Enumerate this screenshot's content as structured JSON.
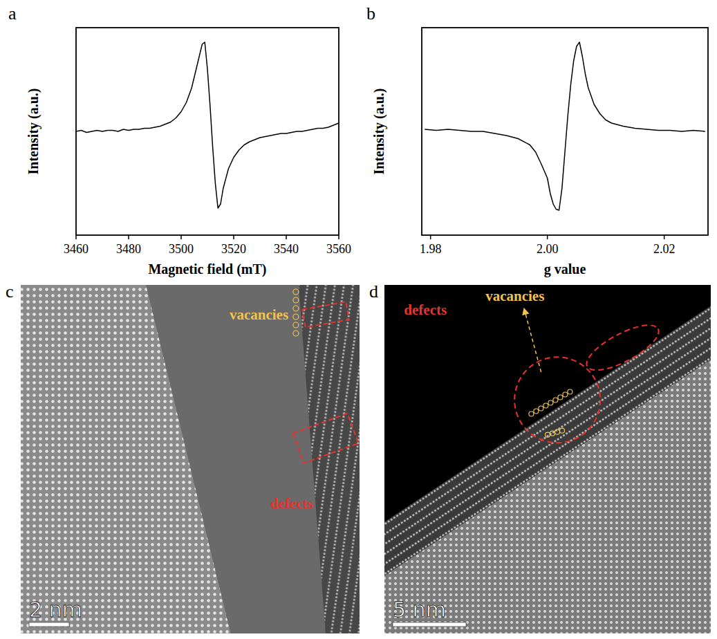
{
  "chart_data": [
    {
      "type": "line",
      "label": "a",
      "x_label": "Magnetic field (mT)",
      "y_label": "Intensity (a.u.)",
      "x": [
        3460,
        3462,
        3464,
        3466,
        3468,
        3470,
        3472,
        3474,
        3476,
        3478,
        3480,
        3482,
        3484,
        3486,
        3488,
        3490,
        3492,
        3494,
        3496,
        3498,
        3500,
        3502,
        3504,
        3506,
        3508,
        3509,
        3510,
        3511,
        3512,
        3513,
        3514,
        3515,
        3516,
        3518,
        3520,
        3522,
        3524,
        3526,
        3528,
        3530,
        3532,
        3534,
        3536,
        3538,
        3540,
        3542,
        3544,
        3546,
        3548,
        3550,
        3552,
        3554,
        3556,
        3558,
        3560
      ],
      "values": [
        0.0,
        0.01,
        -0.01,
        0.0,
        0.01,
        0.0,
        0.01,
        0.01,
        0.0,
        0.02,
        0.01,
        0.02,
        0.02,
        0.03,
        0.03,
        0.04,
        0.05,
        0.07,
        0.09,
        0.13,
        0.19,
        0.28,
        0.42,
        0.63,
        0.84,
        0.86,
        0.6,
        0.25,
        -0.15,
        -0.5,
        -0.74,
        -0.7,
        -0.55,
        -0.36,
        -0.25,
        -0.18,
        -0.13,
        -0.1,
        -0.08,
        -0.06,
        -0.05,
        -0.04,
        -0.03,
        -0.02,
        -0.02,
        -0.01,
        0.0,
        0.0,
        0.01,
        0.02,
        0.03,
        0.03,
        0.04,
        0.06,
        0.08
      ],
      "color": "#000000",
      "xlim": [
        3460,
        3560
      ],
      "xticks": [
        3460,
        3480,
        3500,
        3520,
        3540,
        3560
      ],
      "ylim": [
        -1,
        1
      ],
      "tick_labels": "x",
      "grid": false
    },
    {
      "type": "line",
      "label": "b",
      "x_label": "g value",
      "y_label": "Intensity (a.u.)",
      "x": [
        1.979,
        1.981,
        1.983,
        1.985,
        1.987,
        1.989,
        1.991,
        1.993,
        1.995,
        1.997,
        1.998,
        1.999,
        2.0,
        2.0005,
        2.001,
        2.0015,
        2.002,
        2.0025,
        2.003,
        2.0035,
        2.004,
        2.0045,
        2.005,
        2.0055,
        2.006,
        2.0065,
        2.007,
        2.008,
        2.009,
        2.01,
        2.011,
        2.013,
        2.015,
        2.017,
        2.019,
        2.021,
        2.023,
        2.025,
        2.027
      ],
      "values": [
        0.02,
        0.01,
        0.02,
        0.01,
        0.0,
        0.0,
        -0.02,
        -0.04,
        -0.07,
        -0.13,
        -0.2,
        -0.32,
        -0.45,
        -0.6,
        -0.7,
        -0.75,
        -0.76,
        -0.55,
        -0.2,
        0.15,
        0.45,
        0.68,
        0.82,
        0.86,
        0.72,
        0.55,
        0.42,
        0.26,
        0.17,
        0.11,
        0.08,
        0.05,
        0.03,
        0.02,
        0.01,
        0.01,
        0.0,
        0.01,
        0.0
      ],
      "color": "#000000",
      "xlim": [
        1.9785,
        2.0275
      ],
      "xticks": [
        1.98,
        {
          "value": 2,
          "label": "2.00"
        },
        2.02
      ],
      "ylim": [
        -1,
        1
      ],
      "tick_labels": "x",
      "grid": false
    }
  ],
  "images": [
    {
      "label": "c",
      "scale_bar": "2 nm",
      "annotations": [
        {
          "text": "vacancies",
          "color": "#f2c14e"
        },
        {
          "text": "defects",
          "color": "#e8322b"
        }
      ]
    },
    {
      "label": "d",
      "scale_bar": "5 nm",
      "annotations": [
        {
          "text": "defects",
          "color": "#e8322b"
        },
        {
          "text": "vacancies",
          "color": "#f2c14e"
        }
      ]
    }
  ]
}
